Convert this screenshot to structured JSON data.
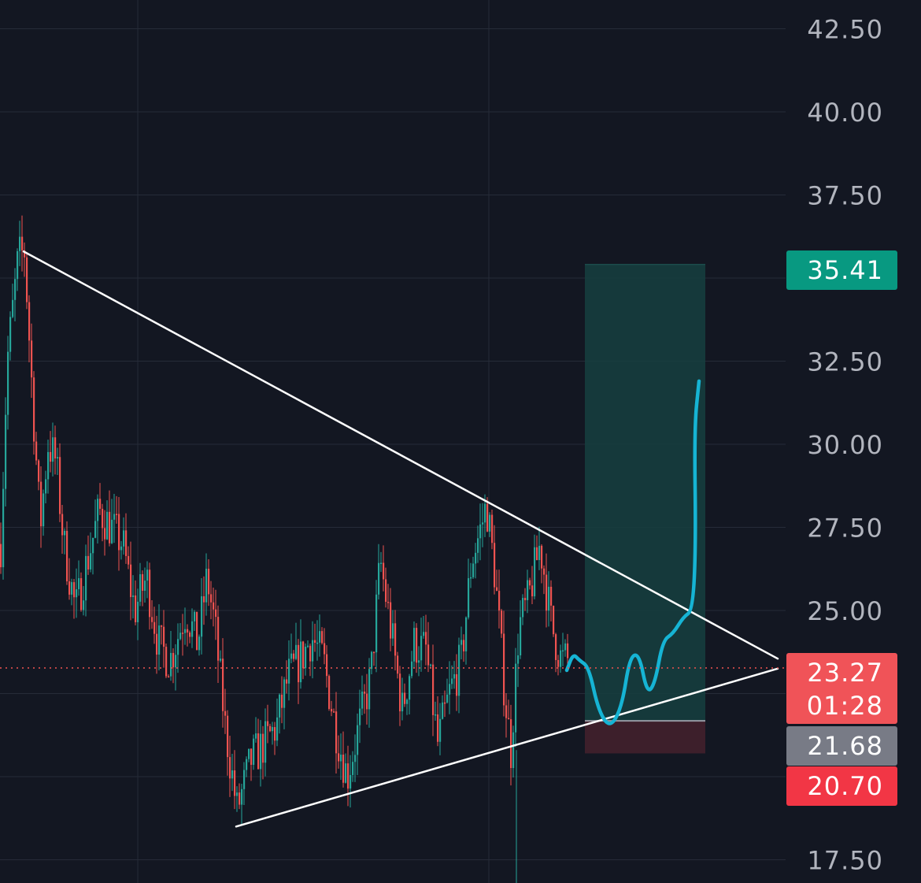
{
  "chart_data": {
    "type": "candlestick",
    "y_axis": {
      "range": [
        17.0,
        43.5
      ],
      "ticks": [
        "42.50",
        "40.00",
        "37.50",
        "32.50",
        "30.00",
        "27.50",
        "25.00",
        "17.50"
      ],
      "position": "right"
    },
    "grid": true,
    "colors": {
      "background": "#131722",
      "grid": "#262b38",
      "up": "#26a69a",
      "down": "#ef5350",
      "trendline": "#ffffff",
      "projection": "#16b4d4",
      "target_zone": "#16403f",
      "stop_zone": "#3d1f2b",
      "axis_text": "#b2b5be"
    },
    "price_path": [
      [
        0,
        27
      ],
      [
        8,
        32.5
      ],
      [
        22,
        35.6
      ],
      [
        30,
        35.8
      ],
      [
        40,
        31.5
      ],
      [
        50,
        27.5
      ],
      [
        60,
        30
      ],
      [
        70,
        29.5
      ],
      [
        80,
        27
      ],
      [
        95,
        25
      ],
      [
        110,
        26.5
      ],
      [
        125,
        28
      ],
      [
        140,
        27.5
      ],
      [
        155,
        27
      ],
      [
        170,
        25
      ],
      [
        185,
        26
      ],
      [
        200,
        24
      ],
      [
        215,
        23.5
      ],
      [
        235,
        25
      ],
      [
        250,
        24
      ],
      [
        262,
        26
      ],
      [
        272,
        24.5
      ],
      [
        285,
        21.5
      ],
      [
        300,
        19
      ],
      [
        318,
        20.5
      ],
      [
        335,
        21
      ],
      [
        350,
        21.5
      ],
      [
        365,
        23
      ],
      [
        380,
        23.5
      ],
      [
        395,
        24.2
      ],
      [
        410,
        23.5
      ],
      [
        425,
        21.5
      ],
      [
        440,
        20
      ],
      [
        455,
        21.5
      ],
      [
        470,
        23
      ],
      [
        482,
        26.5
      ],
      [
        495,
        24.5
      ],
      [
        510,
        22
      ],
      [
        525,
        24
      ],
      [
        540,
        23.8
      ],
      [
        555,
        21
      ],
      [
        570,
        22.5
      ],
      [
        585,
        23.5
      ],
      [
        598,
        26.5
      ],
      [
        610,
        27.5
      ],
      [
        617,
        28.2
      ],
      [
        628,
        26
      ],
      [
        640,
        22.5
      ],
      [
        648,
        20.8
      ],
      [
        658,
        24.5
      ],
      [
        670,
        25.3
      ],
      [
        685,
        27
      ],
      [
        700,
        24.5
      ],
      [
        712,
        23.5
      ],
      [
        720,
        23.5
      ]
    ],
    "annotations": {
      "upper_trendline": {
        "from": [
          30,
          35.8
        ],
        "to": [
          988,
          23.55
        ]
      },
      "lower_trendline": {
        "from": [
          300,
          18.5
        ],
        "to": [
          988,
          23.25
        ]
      },
      "current_price_line": 23.27,
      "target_zone": {
        "top": 35.41,
        "bottom": 21.68
      },
      "stop_zone": {
        "top": 21.68,
        "bottom": 20.7
      },
      "projection_path": [
        [
          720,
          23.2
        ],
        [
          728,
          23.7
        ],
        [
          736,
          23.5
        ],
        [
          748,
          23.3
        ],
        [
          760,
          22.0
        ],
        [
          775,
          21.45
        ],
        [
          790,
          22.1
        ],
        [
          800,
          23.6
        ],
        [
          812,
          23.7
        ],
        [
          822,
          22.5
        ],
        [
          832,
          22.8
        ],
        [
          842,
          24.1
        ],
        [
          855,
          24.3
        ],
        [
          868,
          24.8
        ],
        [
          880,
          25.0
        ],
        [
          884,
          27.0
        ],
        [
          882,
          30.5
        ],
        [
          888,
          31.9
        ]
      ]
    },
    "price_labels": [
      {
        "value": "35.41",
        "color": "#089981"
      },
      {
        "value": "23.27",
        "sub": "01:28",
        "color": "#f05358"
      },
      {
        "value": "21.68",
        "color": "#787b86"
      },
      {
        "value": "20.70",
        "color": "#f23645"
      }
    ]
  }
}
